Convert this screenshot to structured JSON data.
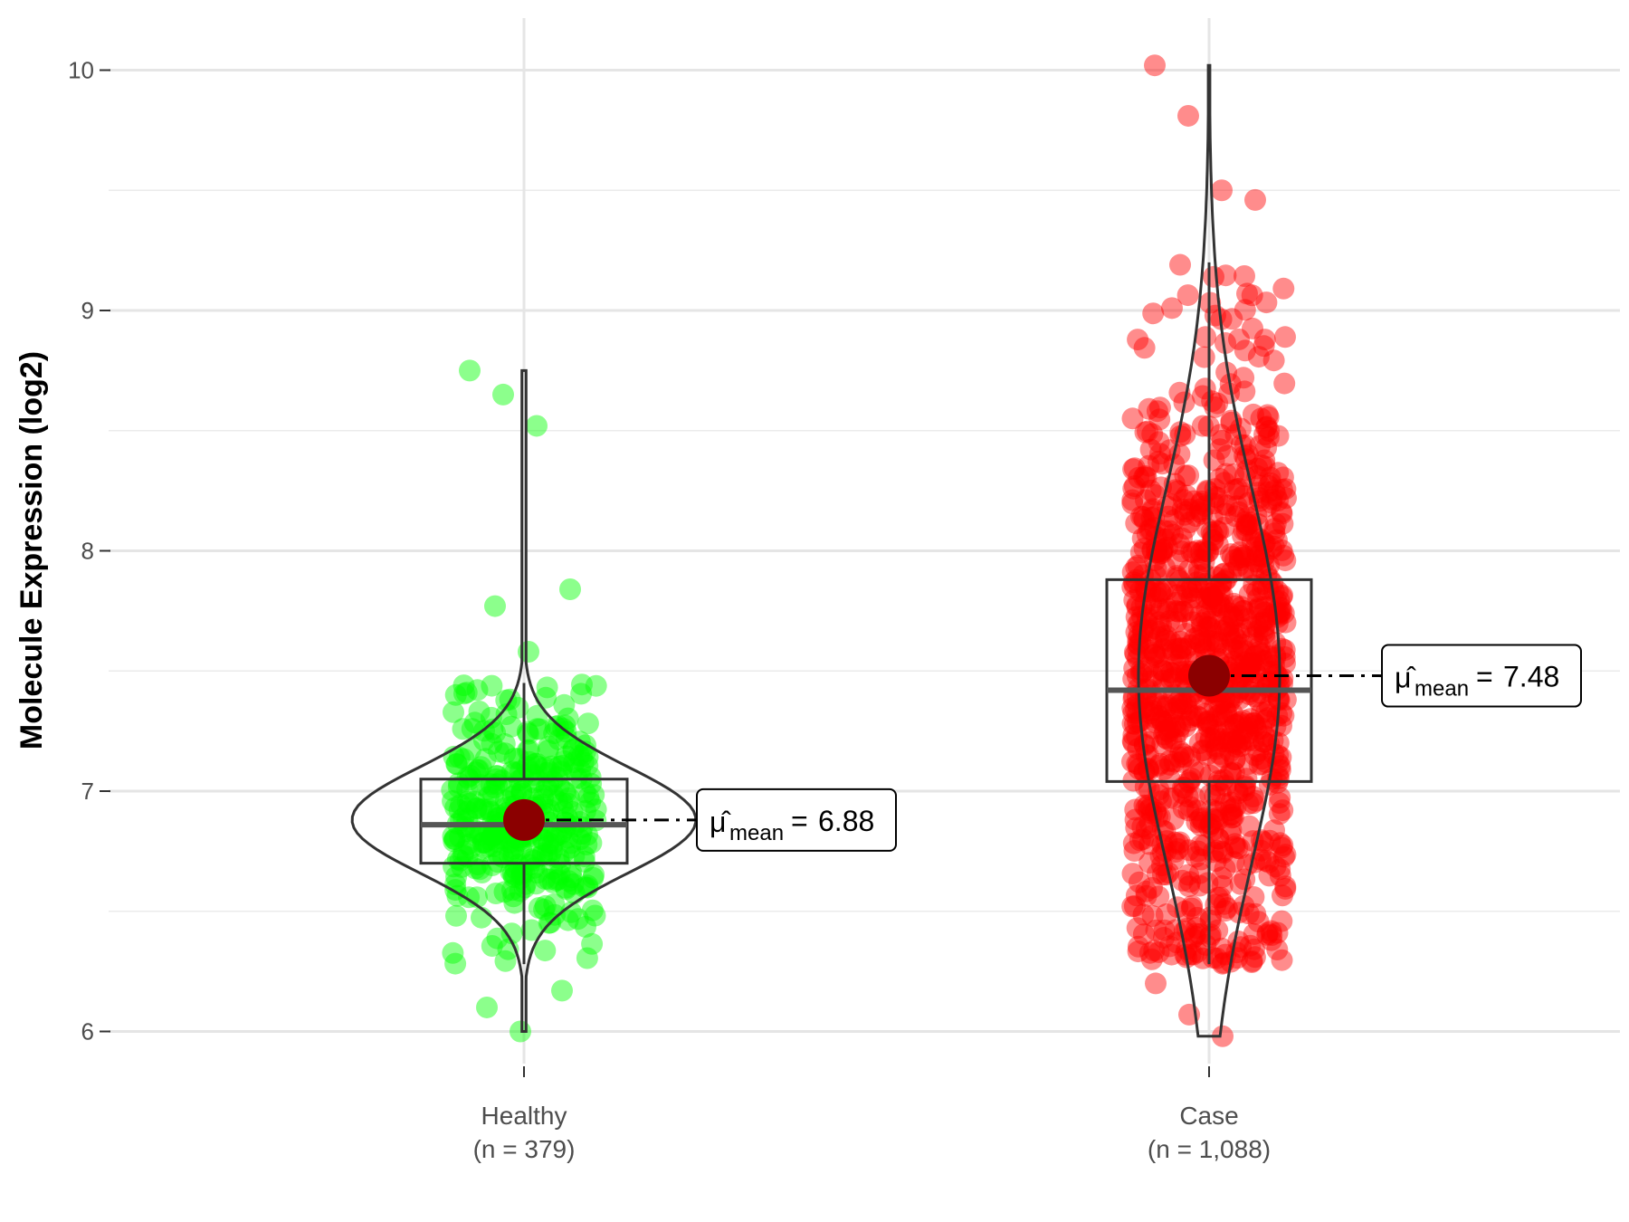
{
  "chart_data": {
    "type": "violin-box-scatter",
    "ylabel": "Molecule Expression (log2)",
    "ylim": [
      5.8,
      10.2
    ],
    "yticks": [
      6,
      7,
      8,
      9,
      10
    ],
    "grid": true,
    "groups": [
      {
        "label": "Healthy",
        "n_label": "(n = 379)",
        "n": 379,
        "color": "#00ff00",
        "box": {
          "q1": 6.7,
          "median": 6.86,
          "q3": 7.05,
          "whisker_low": 6.28,
          "whisker_high": 7.45
        },
        "mean": 6.88,
        "mean_label": "6.88",
        "min": 6.0,
        "max": 8.75,
        "outliers": [
          8.75,
          8.65,
          8.52,
          7.84,
          7.77,
          7.58,
          6.17,
          6.1,
          6.0
        ]
      },
      {
        "label": "Case",
        "n_label": "(n = 1,088)",
        "n": 1088,
        "color": "#ff0000",
        "box": {
          "q1": 7.04,
          "median": 7.42,
          "q3": 7.88,
          "whisker_low": 6.28,
          "whisker_high": 9.2
        },
        "mean": 7.48,
        "mean_label": "7.48",
        "min": 5.98,
        "max": 10.02,
        "outliers": [
          10.02,
          9.81,
          9.5,
          9.46,
          9.19,
          9.14,
          9.07,
          9.01,
          8.89,
          8.88,
          6.39,
          6.33,
          6.29,
          6.2,
          6.07,
          5.98
        ]
      }
    ],
    "annotation_symbol": "μ̂",
    "annotation_subscript": "mean",
    "annotation_equals": "="
  }
}
